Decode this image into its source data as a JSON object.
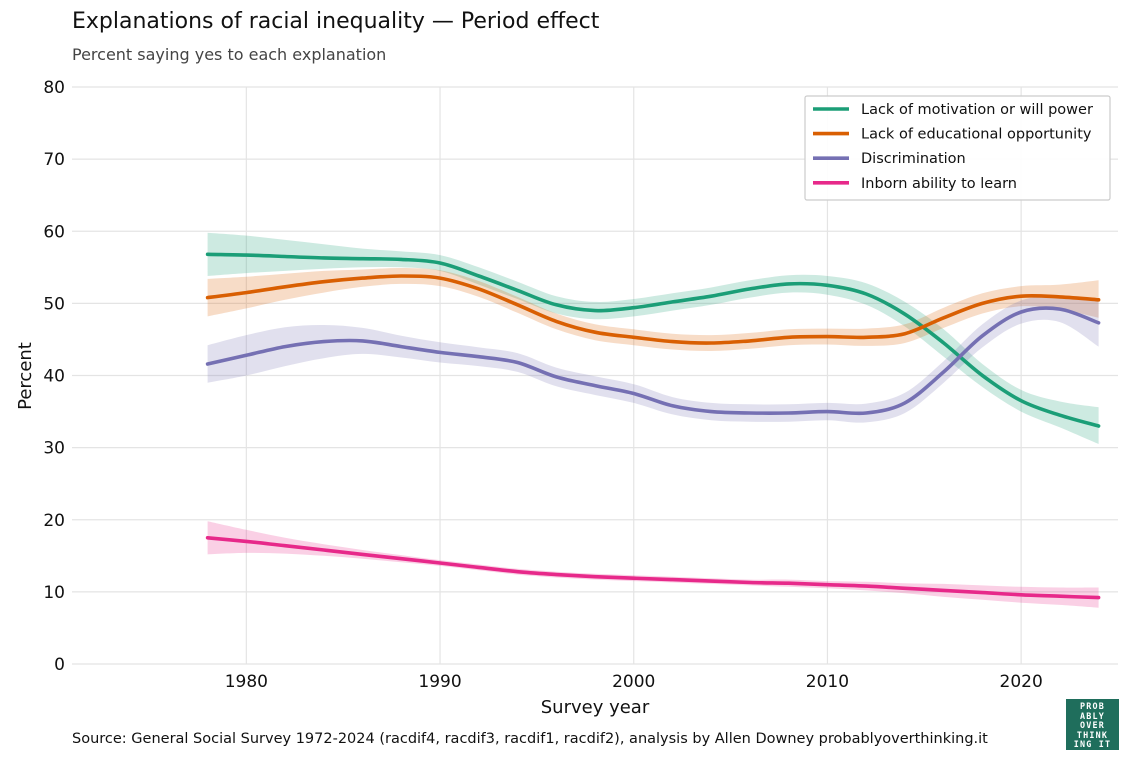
{
  "header": {
    "title": "Explanations of racial inequality — Period effect",
    "subtitle": "Percent saying yes to each explanation"
  },
  "footer": {
    "source": "Source: General Social Survey 1972-2024 (racdif4, racdif3, racdif1, racdif2), analysis by Allen Downey probablyoverthinking.it"
  },
  "logo": {
    "lines": [
      "PROB",
      "ABLY",
      "OVER",
      "THINK",
      "ING IT"
    ],
    "color": "#1f6e5c"
  },
  "chart_data": {
    "type": "line",
    "title": "Explanations of racial inequality — Period effect",
    "subtitle": "Percent saying yes to each explanation",
    "xlabel": "Survey year",
    "ylabel": "Percent",
    "xlim": [
      1971,
      2025
    ],
    "ylim": [
      0,
      80
    ],
    "xticks": [
      1980,
      1990,
      2000,
      2010,
      2020
    ],
    "yticks": [
      0,
      10,
      20,
      30,
      40,
      50,
      60,
      70,
      80
    ],
    "grid": true,
    "legend_position": "top-right",
    "x": [
      1978,
      1980,
      1982,
      1984,
      1986,
      1988,
      1990,
      1992,
      1994,
      1996,
      1998,
      2000,
      2002,
      2004,
      2006,
      2008,
      2010,
      2012,
      2014,
      2016,
      2018,
      2020,
      2022,
      2024
    ],
    "series": [
      {
        "name": "Lack of motivation or will power",
        "color": "#1b9e77",
        "values": [
          56.8,
          56.7,
          56.5,
          56.3,
          56.2,
          56.1,
          55.6,
          53.8,
          51.8,
          49.8,
          49.0,
          49.4,
          50.2,
          51.0,
          52.0,
          52.7,
          52.5,
          51.3,
          48.5,
          44.5,
          40.0,
          36.5,
          34.5,
          33.0
        ],
        "lower": [
          53.8,
          54.2,
          54.5,
          54.8,
          55.0,
          55.0,
          54.5,
          52.6,
          50.6,
          48.6,
          47.8,
          48.2,
          49.0,
          49.8,
          50.8,
          51.5,
          51.2,
          49.8,
          46.8,
          42.6,
          38.4,
          35.0,
          32.8,
          30.5
        ],
        "upper": [
          59.8,
          59.4,
          58.8,
          58.2,
          57.6,
          57.2,
          56.7,
          55.0,
          53.0,
          51.0,
          50.2,
          50.6,
          51.4,
          52.2,
          53.2,
          53.9,
          53.8,
          52.8,
          50.2,
          46.4,
          41.6,
          38.0,
          36.4,
          35.6
        ]
      },
      {
        "name": "Lack of educational opportunity",
        "color": "#d95f02",
        "values": [
          50.8,
          51.5,
          52.3,
          53.0,
          53.5,
          53.8,
          53.5,
          52.0,
          49.8,
          47.5,
          46.0,
          45.3,
          44.7,
          44.5,
          44.8,
          45.3,
          45.4,
          45.3,
          45.8,
          48.0,
          50.0,
          51.0,
          50.9,
          50.5
        ],
        "lower": [
          48.2,
          49.3,
          50.5,
          51.5,
          52.3,
          52.7,
          52.4,
          50.9,
          48.7,
          46.4,
          44.9,
          44.2,
          43.6,
          43.4,
          43.7,
          44.2,
          44.3,
          44.1,
          44.5,
          46.6,
          48.6,
          49.6,
          49.2,
          48.0
        ],
        "upper": [
          53.4,
          53.7,
          54.1,
          54.5,
          54.7,
          54.9,
          54.6,
          53.1,
          50.9,
          48.6,
          47.1,
          46.4,
          45.8,
          45.6,
          45.9,
          46.4,
          46.5,
          46.5,
          47.1,
          49.4,
          51.4,
          52.4,
          52.6,
          53.2
        ]
      },
      {
        "name": "Discrimination",
        "color": "#7570b3",
        "values": [
          41.6,
          42.8,
          44.0,
          44.7,
          44.8,
          44.0,
          43.2,
          42.6,
          41.8,
          39.8,
          38.6,
          37.5,
          35.8,
          35.0,
          34.8,
          34.8,
          35.0,
          34.8,
          36.2,
          40.5,
          45.5,
          48.8,
          49.2,
          47.3
        ],
        "lower": [
          39.0,
          40.0,
          41.3,
          42.4,
          43.0,
          42.5,
          41.8,
          41.3,
          40.5,
          38.5,
          37.3,
          36.2,
          34.6,
          33.8,
          33.6,
          33.6,
          33.8,
          33.5,
          34.8,
          39.0,
          43.9,
          47.2,
          47.4,
          44.0
        ],
        "upper": [
          44.2,
          45.6,
          46.7,
          47.0,
          46.6,
          45.5,
          44.6,
          43.9,
          43.1,
          41.1,
          39.9,
          38.8,
          37.0,
          36.2,
          36.0,
          36.0,
          36.2,
          36.1,
          37.6,
          42.0,
          47.1,
          50.4,
          51.0,
          50.6
        ]
      },
      {
        "name": "Inborn ability to learn",
        "color": "#e7298a",
        "values": [
          17.5,
          17.0,
          16.4,
          15.8,
          15.2,
          14.6,
          14.0,
          13.4,
          12.8,
          12.4,
          12.1,
          11.9,
          11.7,
          11.5,
          11.3,
          11.2,
          11.0,
          10.8,
          10.5,
          10.2,
          9.9,
          9.6,
          9.4,
          9.2
        ],
        "lower": [
          15.2,
          15.4,
          15.3,
          15.0,
          14.6,
          14.1,
          13.6,
          13.0,
          12.4,
          12.0,
          11.7,
          11.5,
          11.3,
          11.1,
          10.9,
          10.7,
          10.5,
          10.2,
          9.8,
          9.3,
          8.9,
          8.5,
          8.2,
          7.8
        ],
        "upper": [
          19.8,
          18.6,
          17.5,
          16.6,
          15.8,
          15.1,
          14.4,
          13.8,
          13.2,
          12.8,
          12.5,
          12.3,
          12.1,
          11.9,
          11.7,
          11.7,
          11.5,
          11.4,
          11.2,
          11.1,
          10.9,
          10.7,
          10.6,
          10.6
        ]
      }
    ]
  }
}
